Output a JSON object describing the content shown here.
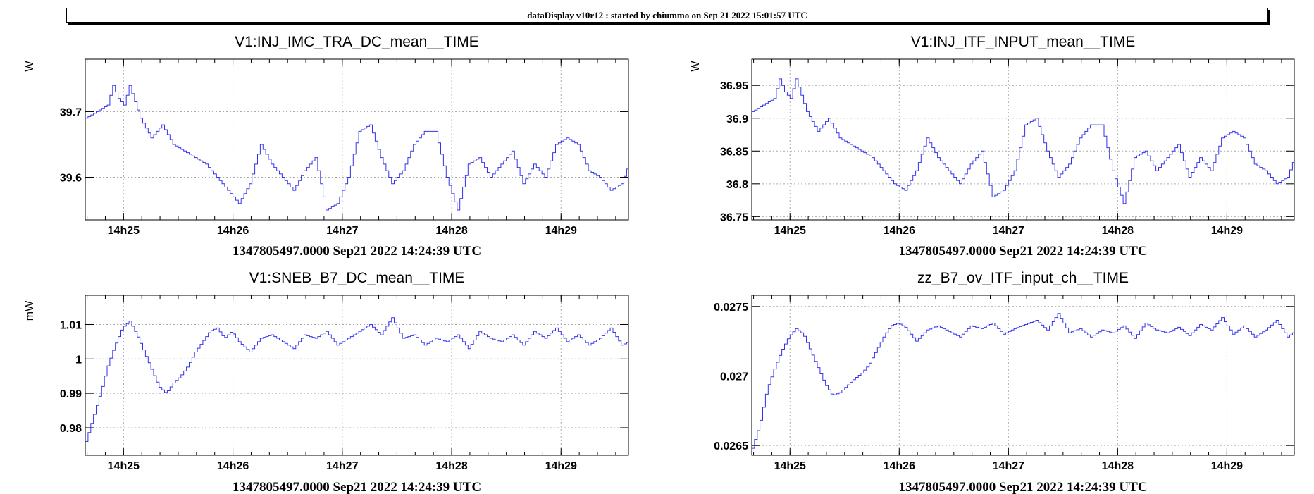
{
  "banner": "dataDisplay v10r12 : started by chiummo on Sep 21 2022 15:01:57 UTC",
  "colors": {
    "series": "#3333ee",
    "grid": "#aaaaaa"
  },
  "chart_data": [
    {
      "type": "line",
      "title": "V1:INJ_IMC_TRA_DC_mean__TIME",
      "ylabel": "W",
      "xlabel": "1347805497.0000 Sep21 2022 14:24:39 UTC",
      "xlim": [
        0,
        298
      ],
      "ylim": [
        39.535,
        39.78
      ],
      "x_ticks": [
        {
          "v": 21,
          "label": "14h25"
        },
        {
          "v": 81,
          "label": "14h26"
        },
        {
          "v": 141,
          "label": "14h27"
        },
        {
          "v": 201,
          "label": "14h28"
        },
        {
          "v": 261,
          "label": "14h29"
        }
      ],
      "y_ticks": [
        {
          "v": 39.6,
          "label": "39.6"
        },
        {
          "v": 39.7,
          "label": "39.7"
        }
      ],
      "grid": true,
      "x": [
        0,
        6,
        12,
        15,
        18,
        21,
        24,
        30,
        36,
        42,
        48,
        54,
        60,
        66,
        72,
        78,
        84,
        90,
        96,
        102,
        108,
        114,
        120,
        126,
        132,
        138,
        144,
        150,
        156,
        162,
        168,
        174,
        180,
        186,
        192,
        198,
        204,
        210,
        216,
        222,
        228,
        234,
        240,
        246,
        252,
        258,
        264,
        270,
        276,
        282,
        288,
        294,
        298
      ],
      "series": [
        {
          "values": [
            39.69,
            39.7,
            39.71,
            39.74,
            39.72,
            39.71,
            39.74,
            39.69,
            39.66,
            39.68,
            39.65,
            39.64,
            39.63,
            39.62,
            39.6,
            39.58,
            39.56,
            39.59,
            39.65,
            39.62,
            39.6,
            39.58,
            39.61,
            39.63,
            39.55,
            39.56,
            39.6,
            39.67,
            39.68,
            39.63,
            39.59,
            39.61,
            39.65,
            39.67,
            39.67,
            39.6,
            39.55,
            39.62,
            39.63,
            39.6,
            39.62,
            39.64,
            39.59,
            39.62,
            39.6,
            39.65,
            39.66,
            39.65,
            39.61,
            39.6,
            39.58,
            39.59,
            39.62
          ]
        }
      ]
    },
    {
      "type": "line",
      "title": "V1:INJ_ITF_INPUT_mean__TIME",
      "ylabel": "W",
      "xlabel": "1347805497.0000 Sep21 2022 14:24:39 UTC",
      "xlim": [
        0,
        298
      ],
      "ylim": [
        36.745,
        36.99
      ],
      "x_ticks": [
        {
          "v": 21,
          "label": "14h25"
        },
        {
          "v": 81,
          "label": "14h26"
        },
        {
          "v": 141,
          "label": "14h27"
        },
        {
          "v": 201,
          "label": "14h28"
        },
        {
          "v": 261,
          "label": "14h29"
        }
      ],
      "y_ticks": [
        {
          "v": 36.75,
          "label": "36.75"
        },
        {
          "v": 36.8,
          "label": "36.8"
        },
        {
          "v": 36.85,
          "label": "36.85"
        },
        {
          "v": 36.9,
          "label": "36.9"
        },
        {
          "v": 36.95,
          "label": "36.95"
        }
      ],
      "grid": true,
      "x": [
        0,
        6,
        12,
        15,
        18,
        21,
        24,
        30,
        36,
        42,
        48,
        54,
        60,
        66,
        72,
        78,
        84,
        90,
        96,
        102,
        108,
        114,
        120,
        126,
        132,
        138,
        144,
        150,
        156,
        162,
        168,
        174,
        180,
        186,
        192,
        198,
        204,
        210,
        216,
        222,
        228,
        234,
        240,
        246,
        252,
        258,
        264,
        270,
        276,
        282,
        288,
        294,
        298
      ],
      "series": [
        {
          "values": [
            36.91,
            36.92,
            36.93,
            36.96,
            36.94,
            36.93,
            36.96,
            36.91,
            36.88,
            36.9,
            36.87,
            36.86,
            36.85,
            36.84,
            36.82,
            36.8,
            36.79,
            36.82,
            36.87,
            36.84,
            36.82,
            36.8,
            36.83,
            36.85,
            36.78,
            36.79,
            36.82,
            36.89,
            36.9,
            36.85,
            36.81,
            36.83,
            36.87,
            36.89,
            36.89,
            36.82,
            36.77,
            36.84,
            36.85,
            36.82,
            36.84,
            36.86,
            36.81,
            36.84,
            36.82,
            36.87,
            36.88,
            36.87,
            36.83,
            36.82,
            36.8,
            36.81,
            36.84
          ]
        }
      ]
    },
    {
      "type": "line",
      "title": "V1:SNEB_B7_DC_mean__TIME",
      "ylabel": "mW",
      "xlabel": "1347805497.0000 Sep21 2022 14:24:39 UTC",
      "xlim": [
        0,
        298
      ],
      "ylim": [
        0.972,
        1.0185
      ],
      "x_ticks": [
        {
          "v": 21,
          "label": "14h25"
        },
        {
          "v": 81,
          "label": "14h26"
        },
        {
          "v": 141,
          "label": "14h27"
        },
        {
          "v": 201,
          "label": "14h28"
        },
        {
          "v": 261,
          "label": "14h29"
        }
      ],
      "y_ticks": [
        {
          "v": 0.98,
          "label": "0.98"
        },
        {
          "v": 0.99,
          "label": "0.99"
        },
        {
          "v": 1.0,
          "label": "1"
        },
        {
          "v": 1.01,
          "label": "1.01"
        }
      ],
      "grid": true,
      "x": [
        0,
        4,
        8,
        12,
        16,
        20,
        24,
        28,
        32,
        36,
        40,
        44,
        48,
        52,
        56,
        60,
        64,
        68,
        72,
        76,
        80,
        84,
        90,
        96,
        102,
        108,
        114,
        120,
        126,
        132,
        138,
        144,
        150,
        156,
        162,
        168,
        174,
        180,
        186,
        192,
        198,
        204,
        210,
        216,
        222,
        228,
        234,
        240,
        246,
        252,
        258,
        264,
        270,
        276,
        282,
        288,
        294,
        298
      ],
      "series": [
        {
          "values": [
            0.976,
            0.983,
            0.99,
            0.998,
            1.004,
            1.009,
            1.011,
            1.007,
            1.002,
            0.997,
            0.992,
            0.99,
            0.993,
            0.995,
            0.998,
            1.002,
            1.005,
            1.008,
            1.009,
            1.006,
            1.008,
            1.005,
            1.002,
            1.006,
            1.007,
            1.005,
            1.003,
            1.007,
            1.006,
            1.008,
            1.004,
            1.006,
            1.008,
            1.01,
            1.007,
            1.012,
            1.006,
            1.007,
            1.004,
            1.006,
            1.005,
            1.007,
            1.003,
            1.008,
            1.006,
            1.005,
            1.007,
            1.004,
            1.008,
            1.006,
            1.009,
            1.005,
            1.007,
            1.004,
            1.006,
            1.009,
            1.004,
            1.005
          ]
        }
      ]
    },
    {
      "type": "line",
      "title": "zz_B7_ov_ITF_input_ch__TIME",
      "ylabel": "",
      "xlabel": "1347805497.0000 Sep21 2022 14:24:39 UTC",
      "xlim": [
        0,
        298
      ],
      "ylim": [
        0.02643,
        0.02758
      ],
      "x_ticks": [
        {
          "v": 21,
          "label": "14h25"
        },
        {
          "v": 81,
          "label": "14h26"
        },
        {
          "v": 141,
          "label": "14h27"
        },
        {
          "v": 201,
          "label": "14h28"
        },
        {
          "v": 261,
          "label": "14h29"
        }
      ],
      "y_ticks": [
        {
          "v": 0.0265,
          "label": "0.0265"
        },
        {
          "v": 0.027,
          "label": "0.027"
        },
        {
          "v": 0.0275,
          "label": "0.0275"
        }
      ],
      "grid": true,
      "x": [
        0,
        4,
        8,
        12,
        16,
        20,
        24,
        28,
        32,
        36,
        40,
        44,
        48,
        52,
        56,
        60,
        64,
        68,
        72,
        76,
        80,
        84,
        90,
        96,
        102,
        108,
        114,
        120,
        126,
        132,
        138,
        144,
        150,
        156,
        162,
        168,
        174,
        180,
        186,
        192,
        198,
        204,
        210,
        216,
        222,
        228,
        234,
        240,
        246,
        252,
        258,
        264,
        270,
        276,
        282,
        288,
        294,
        298
      ],
      "series": [
        {
          "values": [
            0.02648,
            0.02665,
            0.0269,
            0.02705,
            0.02718,
            0.02728,
            0.02734,
            0.0273,
            0.02718,
            0.02706,
            0.02694,
            0.02686,
            0.02688,
            0.02693,
            0.02698,
            0.02702,
            0.02708,
            0.02718,
            0.02728,
            0.02736,
            0.02738,
            0.02735,
            0.02725,
            0.02733,
            0.02736,
            0.02732,
            0.02728,
            0.02736,
            0.02734,
            0.02738,
            0.0273,
            0.02734,
            0.02737,
            0.0274,
            0.02733,
            0.02745,
            0.02731,
            0.02734,
            0.02728,
            0.02733,
            0.02731,
            0.02736,
            0.02727,
            0.02738,
            0.02733,
            0.02731,
            0.02735,
            0.02729,
            0.02737,
            0.02733,
            0.02742,
            0.0273,
            0.02736,
            0.02728,
            0.02733,
            0.0274,
            0.02728,
            0.02732
          ]
        }
      ]
    }
  ]
}
